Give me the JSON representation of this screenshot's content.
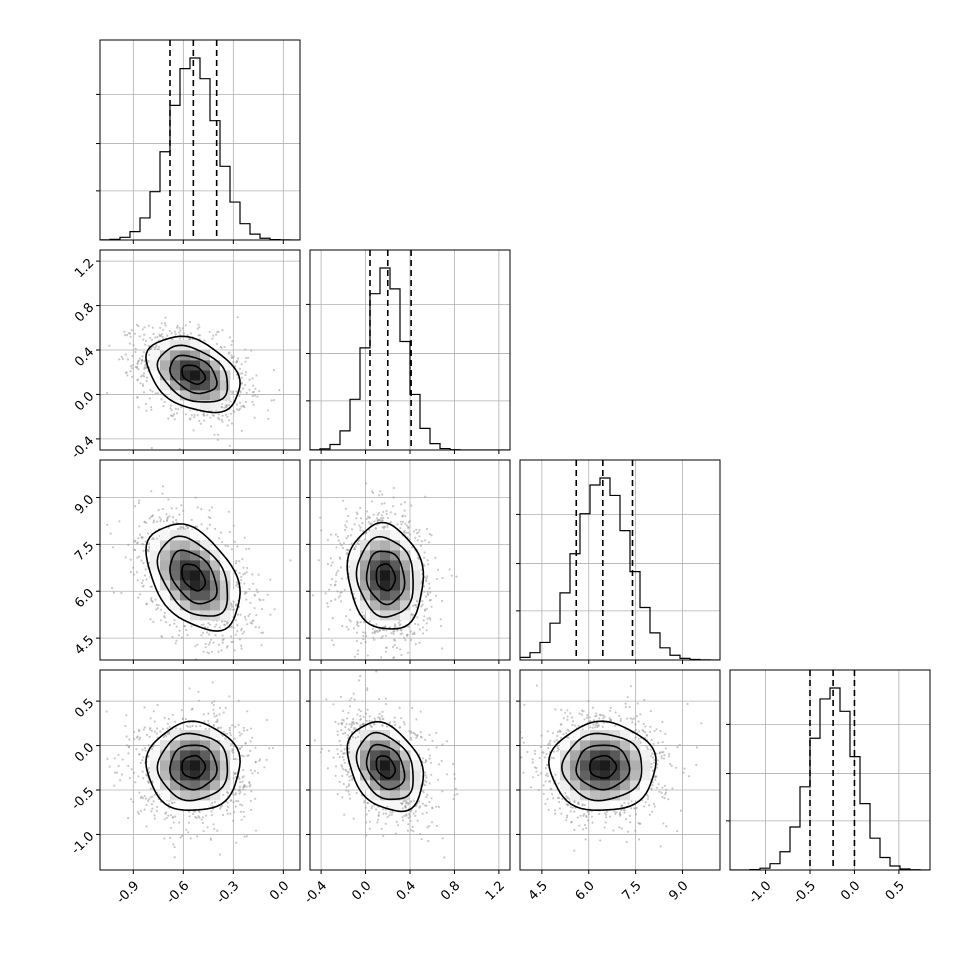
{
  "chart_data": {
    "type": "corner",
    "title": "",
    "grid": true,
    "parameters": [
      {
        "index": 0,
        "range": [
          -1.1,
          0.1
        ],
        "ticks": [
          "-0.9",
          "-0.6",
          "-0.3",
          "0.0"
        ],
        "tick_values": [
          -0.9,
          -0.6,
          -0.3,
          0.0
        ],
        "quantiles": [
          -0.68,
          -0.54,
          -0.4
        ],
        "peak": -0.54,
        "sigma": 0.14,
        "label": ""
      },
      {
        "index": 1,
        "range": [
          -0.5,
          1.3
        ],
        "ticks": [
          "-0.4",
          "0.0",
          "0.4",
          "0.8",
          "1.2"
        ],
        "tick_values": [
          -0.4,
          0.0,
          0.4,
          0.8,
          1.2
        ],
        "quantiles": [
          0.04,
          0.2,
          0.41
        ],
        "peak": 0.18,
        "sigma": 0.17,
        "label": ""
      },
      {
        "index": 2,
        "range": [
          3.8,
          10.2
        ],
        "ticks": [
          "4.5",
          "6.0",
          "7.5",
          "9.0"
        ],
        "tick_values": [
          4.5,
          6.0,
          7.5,
          9.0
        ],
        "quantiles": [
          5.6,
          6.45,
          7.4
        ],
        "peak": 6.45,
        "sigma": 0.85,
        "label": ""
      },
      {
        "index": 3,
        "range": [
          -1.4,
          0.85
        ],
        "ticks": [
          "-1.0",
          "-0.5",
          "0.0",
          "0.5"
        ],
        "tick_values": [
          -1.0,
          -0.5,
          0.0,
          0.5
        ],
        "quantiles": [
          -0.5,
          -0.24,
          0.0
        ],
        "peak": -0.24,
        "sigma": 0.25,
        "label": ""
      }
    ],
    "correlations": [
      {
        "x": 0,
        "y": 1,
        "rho": -0.35
      },
      {
        "x": 0,
        "y": 2,
        "rho": -0.4
      },
      {
        "x": 1,
        "y": 2,
        "rho": -0.1
      },
      {
        "x": 0,
        "y": 3,
        "rho": 0.0
      },
      {
        "x": 1,
        "y": 3,
        "rho": -0.3
      },
      {
        "x": 2,
        "y": 3,
        "rho": 0.0
      }
    ],
    "histogram": {
      "type": "step",
      "bins": 20,
      "line_color": "#000000"
    },
    "quantile_line_style": "dashed",
    "contour_levels_sigma": [
      0.5,
      1.0,
      1.5,
      2.0
    ],
    "scatter_color": "#9a9a9a",
    "density_color": "#000000"
  }
}
